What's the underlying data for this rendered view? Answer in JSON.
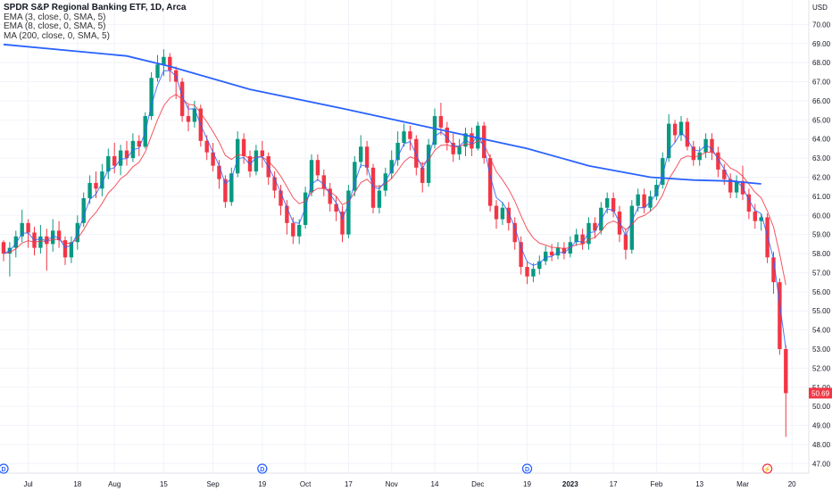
{
  "legend": {
    "title": "SPDR S&P Regional Banking ETF, 1D, Arca",
    "studies": [
      "EMA (3, close, 0, SMA, 5)",
      "EMA (8, close, 0, SMA, 5)",
      "MA (200, close, 0, SMA, 5)"
    ]
  },
  "chart_data": {
    "type": "candlestick",
    "y_unit": "USD",
    "ylim": [
      46.5,
      71.0
    ],
    "y_ticks": [
      47,
      48,
      49,
      50,
      51,
      52,
      53,
      54,
      55,
      56,
      57,
      58,
      59,
      60,
      61,
      62,
      63,
      64,
      65,
      66,
      67,
      68,
      69,
      70
    ],
    "x_ticks": [
      {
        "label": "Jul",
        "i": 4
      },
      {
        "label": "18",
        "i": 12
      },
      {
        "label": "Aug",
        "i": 18
      },
      {
        "label": "15",
        "i": 26
      },
      {
        "label": "Sep",
        "i": 34
      },
      {
        "label": "19",
        "i": 42
      },
      {
        "label": "Oct",
        "i": 49
      },
      {
        "label": "17",
        "i": 56
      },
      {
        "label": "Nov",
        "i": 63
      },
      {
        "label": "14",
        "i": 70
      },
      {
        "label": "Dec",
        "i": 77
      },
      {
        "label": "19",
        "i": 85
      },
      {
        "label": "2023",
        "i": 92,
        "bold": true
      },
      {
        "label": "17",
        "i": 99
      },
      {
        "label": "Feb",
        "i": 106
      },
      {
        "label": "13",
        "i": 113
      },
      {
        "label": "Mar",
        "i": 120
      },
      {
        "label": "20",
        "i": 128
      }
    ],
    "event_markers": [
      {
        "label": "D",
        "i": 0
      },
      {
        "label": "D",
        "i": 42
      },
      {
        "label": "D",
        "i": 85
      },
      {
        "label": "⚡",
        "i": 124
      }
    ],
    "last_price": "50.69",
    "colors": {
      "up": "#089981",
      "down": "#f23645",
      "ema3": "#2962ff",
      "ema8": "#f23645",
      "ma200": "#2962ff",
      "last": "#f23645"
    },
    "ma200": [
      [
        0,
        68.95
      ],
      [
        20,
        68.35
      ],
      [
        27,
        67.8
      ],
      [
        40,
        66.6
      ],
      [
        55,
        65.6
      ],
      [
        70,
        64.55
      ],
      [
        85,
        63.5
      ],
      [
        95,
        62.6
      ],
      [
        105,
        62.0
      ],
      [
        112,
        61.85
      ],
      [
        118,
        61.8
      ],
      [
        123,
        61.65
      ]
    ],
    "candles": [
      [
        58.6,
        58.0,
        58.7,
        57.6
      ],
      [
        58.0,
        58.3,
        58.6,
        56.8
      ],
      [
        58.3,
        58.9,
        59.2,
        57.8
      ],
      [
        58.9,
        59.6,
        60.3,
        58.6
      ],
      [
        59.6,
        59.1,
        59.8,
        58.3
      ],
      [
        59.1,
        58.3,
        59.4,
        57.9
      ],
      [
        58.3,
        58.9,
        59.5,
        58.0
      ],
      [
        58.9,
        58.5,
        59.3,
        57.1
      ],
      [
        58.5,
        59.2,
        59.8,
        58.1
      ],
      [
        59.2,
        58.7,
        59.7,
        58.3
      ],
      [
        58.7,
        57.8,
        58.9,
        57.4
      ],
      [
        57.8,
        58.6,
        58.9,
        57.5
      ],
      [
        58.6,
        59.6,
        60.0,
        58.2
      ],
      [
        59.6,
        60.9,
        61.2,
        59.4
      ],
      [
        60.9,
        61.7,
        62.1,
        60.6
      ],
      [
        61.7,
        61.4,
        62.3,
        60.9
      ],
      [
        61.4,
        62.3,
        62.7,
        61.0
      ],
      [
        62.3,
        63.1,
        63.5,
        61.9
      ],
      [
        63.1,
        62.6,
        63.8,
        62.2
      ],
      [
        62.6,
        63.4,
        63.7,
        62.1
      ],
      [
        63.4,
        63.0,
        63.9,
        62.6
      ],
      [
        63.0,
        63.9,
        64.3,
        62.8
      ],
      [
        63.9,
        63.6,
        64.2,
        63.1
      ],
      [
        63.6,
        65.2,
        65.4,
        63.5
      ],
      [
        65.2,
        67.2,
        67.5,
        65.0
      ],
      [
        67.2,
        67.9,
        68.4,
        67.0
      ],
      [
        67.9,
        68.3,
        68.7,
        67.3
      ],
      [
        68.3,
        67.6,
        68.5,
        67.0
      ],
      [
        67.6,
        67.0,
        67.8,
        66.1
      ],
      [
        67.0,
        65.2,
        67.2,
        64.9
      ],
      [
        65.2,
        64.9,
        65.8,
        64.4
      ],
      [
        64.9,
        65.6,
        66.0,
        64.6
      ],
      [
        65.6,
        63.9,
        65.8,
        63.6
      ],
      [
        63.9,
        63.3,
        64.2,
        62.9
      ],
      [
        63.3,
        62.6,
        63.8,
        62.3
      ],
      [
        62.6,
        61.9,
        62.9,
        61.4
      ],
      [
        61.9,
        60.7,
        62.1,
        60.4
      ],
      [
        60.7,
        62.2,
        62.5,
        60.5
      ],
      [
        62.2,
        64.0,
        64.4,
        62.0
      ],
      [
        64.0,
        63.1,
        64.3,
        62.7
      ],
      [
        63.1,
        62.3,
        63.4,
        62.0
      ],
      [
        62.3,
        63.4,
        63.7,
        62.1
      ],
      [
        63.4,
        63.1,
        63.9,
        62.5
      ],
      [
        63.1,
        62.0,
        63.3,
        61.6
      ],
      [
        62.0,
        61.3,
        62.3,
        60.9
      ],
      [
        61.3,
        60.5,
        61.6,
        60.0
      ],
      [
        60.5,
        59.6,
        60.8,
        59.0
      ],
      [
        59.6,
        58.9,
        59.9,
        58.5
      ],
      [
        58.9,
        59.5,
        59.8,
        58.5
      ],
      [
        59.5,
        61.2,
        61.5,
        59.3
      ],
      [
        61.2,
        62.9,
        63.2,
        61.0
      ],
      [
        62.9,
        62.1,
        63.2,
        61.8
      ],
      [
        62.1,
        61.4,
        62.4,
        61.0
      ],
      [
        61.4,
        60.6,
        61.7,
        60.2
      ],
      [
        60.6,
        60.2,
        61.0,
        59.7
      ],
      [
        60.2,
        59.0,
        60.5,
        58.6
      ],
      [
        59.0,
        61.3,
        61.6,
        58.8
      ],
      [
        61.3,
        62.8,
        63.1,
        61.0
      ],
      [
        62.8,
        63.6,
        64.2,
        62.5
      ],
      [
        63.6,
        62.5,
        63.9,
        62.1
      ],
      [
        62.5,
        60.4,
        62.7,
        60.1
      ],
      [
        60.4,
        61.3,
        61.6,
        60.1
      ],
      [
        61.3,
        62.2,
        62.5,
        61.0
      ],
      [
        62.2,
        62.9,
        63.4,
        61.9
      ],
      [
        62.9,
        63.8,
        64.4,
        62.6
      ],
      [
        63.8,
        64.4,
        64.8,
        63.6
      ],
      [
        64.4,
        64.0,
        64.7,
        63.4
      ],
      [
        64.0,
        62.5,
        64.2,
        62.1
      ],
      [
        62.5,
        61.7,
        62.8,
        61.2
      ],
      [
        61.7,
        63.7,
        64.0,
        61.5
      ],
      [
        63.7,
        65.2,
        65.6,
        63.5
      ],
      [
        65.2,
        64.6,
        65.9,
        64.2
      ],
      [
        64.6,
        63.8,
        64.9,
        63.4
      ],
      [
        63.8,
        63.2,
        64.3,
        62.8
      ],
      [
        63.2,
        63.6,
        64.0,
        62.9
      ],
      [
        63.6,
        64.3,
        64.6,
        63.1
      ],
      [
        64.3,
        63.5,
        64.6,
        63.1
      ],
      [
        63.5,
        64.7,
        64.9,
        63.4
      ],
      [
        64.7,
        63.0,
        64.9,
        62.7
      ],
      [
        63.0,
        60.5,
        63.2,
        60.2
      ],
      [
        60.5,
        59.8,
        60.8,
        59.3
      ],
      [
        59.8,
        60.4,
        60.7,
        59.5
      ],
      [
        60.4,
        59.6,
        60.7,
        59.2
      ],
      [
        59.6,
        58.6,
        59.9,
        58.2
      ],
      [
        58.6,
        57.3,
        58.9,
        56.9
      ],
      [
        57.3,
        56.8,
        57.6,
        56.4
      ],
      [
        56.8,
        57.2,
        57.5,
        56.5
      ],
      [
        57.2,
        57.6,
        57.9,
        56.9
      ],
      [
        57.6,
        58.1,
        58.4,
        57.4
      ],
      [
        58.1,
        57.9,
        58.5,
        57.6
      ],
      [
        57.9,
        58.3,
        58.6,
        57.7
      ],
      [
        58.3,
        58.0,
        58.6,
        57.7
      ],
      [
        58.0,
        58.6,
        58.9,
        57.8
      ],
      [
        58.6,
        59.0,
        59.3,
        58.4
      ],
      [
        59.0,
        58.5,
        59.3,
        58.2
      ],
      [
        58.5,
        59.6,
        59.9,
        58.2
      ],
      [
        59.6,
        59.2,
        59.9,
        58.8
      ],
      [
        59.2,
        60.4,
        60.7,
        59.0
      ],
      [
        60.4,
        60.9,
        61.2,
        60.1
      ],
      [
        60.9,
        60.2,
        61.2,
        59.9
      ],
      [
        60.2,
        59.0,
        60.5,
        58.6
      ],
      [
        59.0,
        58.2,
        59.3,
        57.7
      ],
      [
        58.2,
        60.5,
        60.8,
        58.0
      ],
      [
        60.5,
        61.1,
        61.4,
        60.2
      ],
      [
        61.1,
        60.4,
        61.4,
        60.1
      ],
      [
        60.4,
        61.0,
        61.3,
        60.2
      ],
      [
        61.0,
        61.6,
        61.9,
        60.8
      ],
      [
        61.6,
        63.0,
        63.3,
        61.4
      ],
      [
        63.0,
        64.8,
        65.3,
        62.8
      ],
      [
        64.8,
        64.2,
        65.0,
        63.8
      ],
      [
        64.2,
        64.9,
        65.2,
        63.9
      ],
      [
        64.9,
        63.6,
        65.1,
        63.4
      ],
      [
        63.6,
        62.9,
        63.9,
        62.6
      ],
      [
        62.9,
        63.3,
        63.6,
        62.6
      ],
      [
        63.3,
        64.0,
        64.3,
        63.0
      ],
      [
        64.0,
        63.3,
        64.3,
        62.9
      ],
      [
        63.3,
        62.4,
        63.6,
        62.0
      ],
      [
        62.4,
        61.9,
        62.7,
        61.6
      ],
      [
        61.9,
        61.2,
        62.2,
        60.9
      ],
      [
        61.2,
        61.8,
        62.1,
        60.9
      ],
      [
        61.8,
        61.1,
        62.6,
        60.8
      ],
      [
        61.1,
        60.2,
        61.4,
        59.8
      ],
      [
        60.2,
        59.7,
        60.6,
        59.3
      ],
      [
        59.7,
        59.9,
        60.1,
        59.2
      ],
      [
        59.9,
        57.8,
        60.1,
        57.5
      ],
      [
        57.8,
        56.5,
        58.1,
        55.9
      ],
      [
        56.5,
        53.0,
        56.7,
        52.7
      ],
      [
        53.0,
        50.69,
        53.2,
        48.4
      ]
    ]
  }
}
